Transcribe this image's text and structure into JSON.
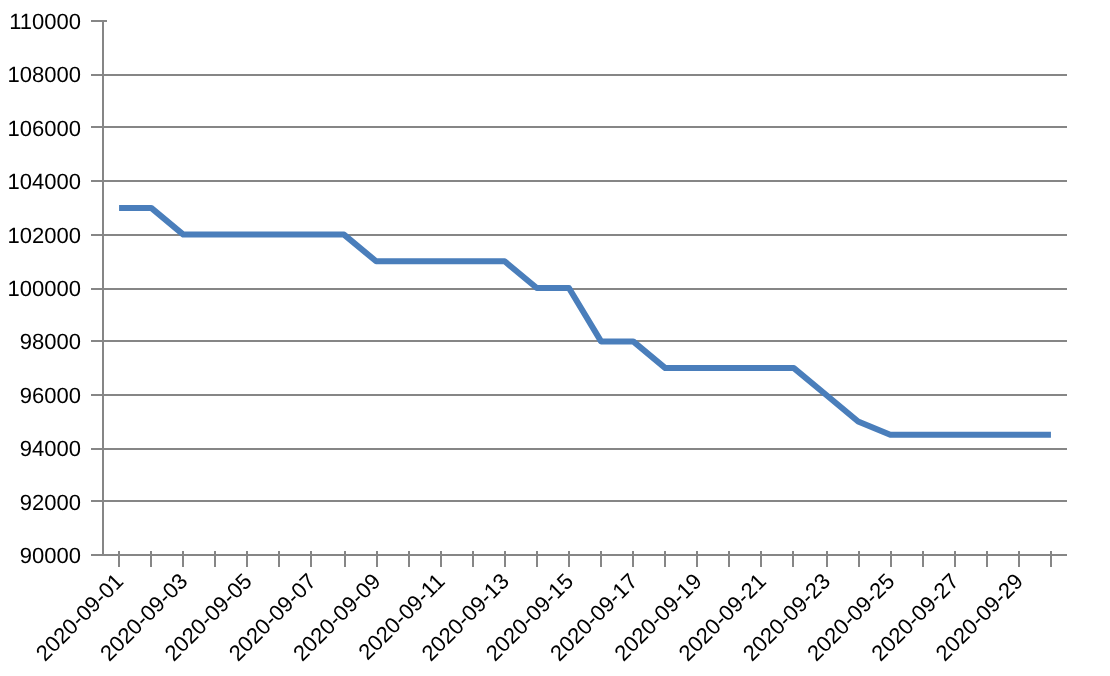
{
  "chart_data": {
    "type": "line",
    "categories": [
      "2020-09-01",
      null,
      "2020-09-03",
      null,
      "2020-09-05",
      null,
      "2020-09-07",
      null,
      "2020-09-09",
      null,
      "2020-09-11",
      null,
      "2020-09-13",
      null,
      "2020-09-15",
      null,
      "2020-09-17",
      null,
      "2020-09-19",
      null,
      "2020-09-21",
      null,
      "2020-09-23",
      null,
      "2020-09-25",
      null,
      "2020-09-27",
      null,
      "2020-09-29",
      null
    ],
    "series": [
      {
        "color": "#4a7ebb",
        "values": [
          103000,
          103000,
          102000,
          102000,
          102000,
          102000,
          102000,
          102000,
          101000,
          101000,
          101000,
          101000,
          101000,
          100000,
          100000,
          98000,
          98000,
          97000,
          97000,
          97000,
          97000,
          97000,
          96000,
          95000,
          94500,
          94500,
          94500,
          94500,
          94500,
          94500
        ]
      }
    ],
    "ylim": [
      90000,
      110000
    ],
    "yticks": [
      90000,
      92000,
      94000,
      96000,
      98000,
      100000,
      102000,
      104000,
      106000,
      108000,
      110000
    ],
    "grid": "y",
    "marker": "none",
    "line_style": "solid"
  }
}
